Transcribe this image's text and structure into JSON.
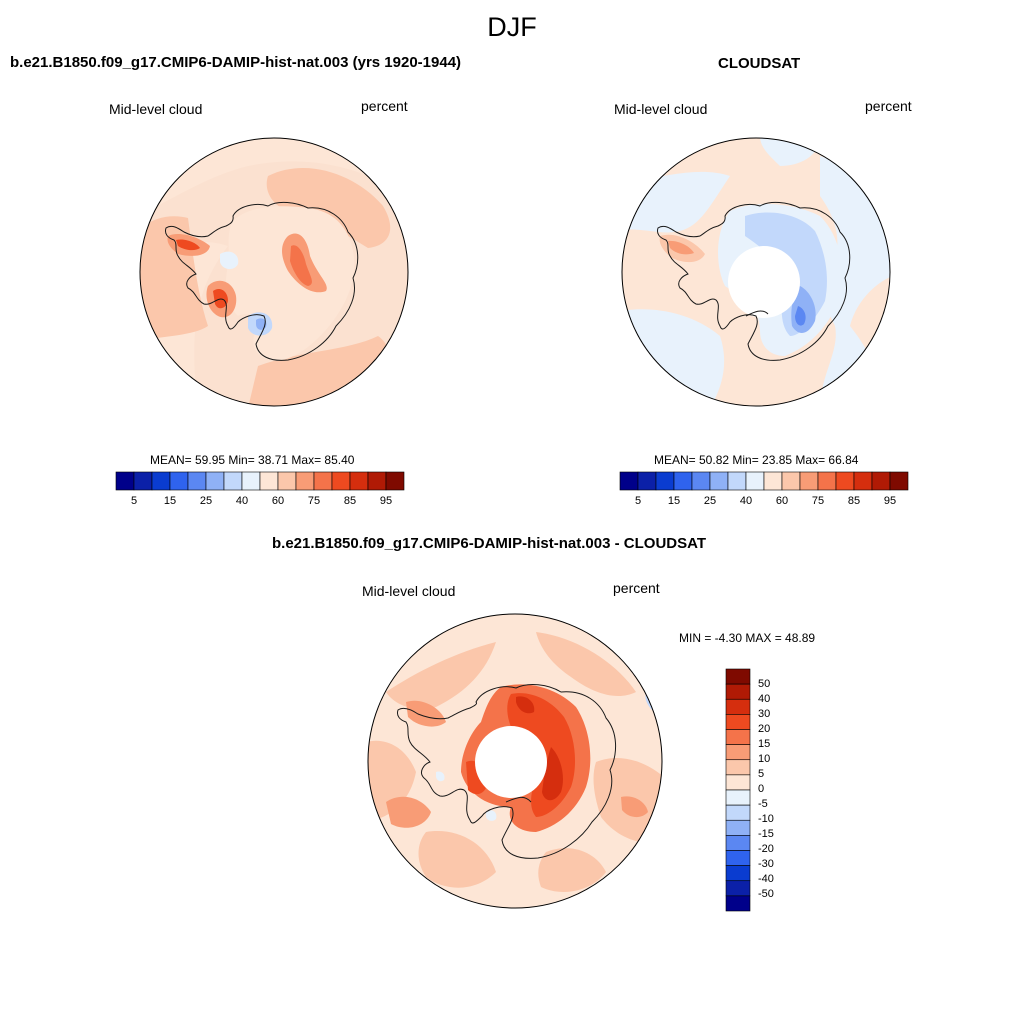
{
  "figure": {
    "season": "DJF",
    "colors": {
      "ocean_bg": "#fbe1d0",
      "coast": "#1a1a1a"
    }
  },
  "panels": [
    {
      "title": "b.e21.B1850.f09_g17.CMIP6-DAMIP-hist-nat.003 (yrs 1920-1944)",
      "left_label": "Mid-level cloud",
      "right_label": "percent",
      "stats": "MEAN=  59.95  Min=  38.71  Max=  85.40",
      "mean": 59.95,
      "min": 38.71,
      "max": 85.4
    },
    {
      "title": "CLOUDSAT",
      "left_label": "Mid-level cloud",
      "right_label": "percent",
      "stats": "MEAN=  50.82  Min=  23.85  Max=  66.84",
      "mean": 50.82,
      "min": 23.85,
      "max": 66.84
    },
    {
      "title": "b.e21.B1850.f09_g17.CMIP6-DAMIP-hist-nat.003 - CLOUDSAT",
      "left_label": "Mid-level cloud",
      "right_label": "percent",
      "stats": "MIN =  -4.30 MAX =  48.89",
      "min": -4.3,
      "max": 48.89
    }
  ],
  "colorbar_abs": {
    "colors": [
      "#00008a",
      "#0b20a8",
      "#0a3cd0",
      "#2f63ee",
      "#5b87f2",
      "#8fb1f6",
      "#c2d8fb",
      "#e8f2fc",
      "#fde6d6",
      "#fbc7ab",
      "#f89c76",
      "#f4734a",
      "#ee4a20",
      "#d52e0e",
      "#b01a05",
      "#7f0a00"
    ],
    "labels": [
      "5",
      "15",
      "25",
      "40",
      "60",
      "75",
      "85",
      "95"
    ]
  },
  "colorbar_diff": {
    "colors": [
      "#7f0a00",
      "#b01a05",
      "#d52e0e",
      "#ee4a20",
      "#f4734a",
      "#f89c76",
      "#fbc7ab",
      "#fde6d6",
      "#e8f2fc",
      "#c2d8fb",
      "#8fb1f6",
      "#5b87f2",
      "#2f63ee",
      "#0a3cd0",
      "#0b20a8",
      "#00008a"
    ],
    "labels": [
      "50",
      "40",
      "30",
      "20",
      "15",
      "10",
      "5",
      "0",
      "-5",
      "-10",
      "-15",
      "-20",
      "-30",
      "-40",
      "-50"
    ]
  }
}
